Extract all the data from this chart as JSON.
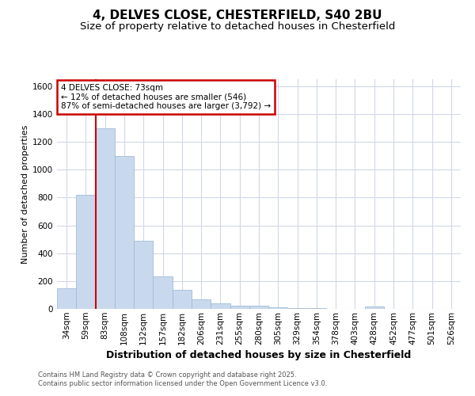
{
  "title1": "4, DELVES CLOSE, CHESTERFIELD, S40 2BU",
  "title2": "Size of property relative to detached houses in Chesterfield",
  "xlabel": "Distribution of detached houses by size in Chesterfield",
  "ylabel": "Number of detached properties",
  "categories": [
    "34sqm",
    "59sqm",
    "83sqm",
    "108sqm",
    "132sqm",
    "157sqm",
    "182sqm",
    "206sqm",
    "231sqm",
    "255sqm",
    "280sqm",
    "305sqm",
    "329sqm",
    "354sqm",
    "378sqm",
    "403sqm",
    "428sqm",
    "452sqm",
    "477sqm",
    "501sqm",
    "526sqm"
  ],
  "values": [
    150,
    820,
    1300,
    1100,
    490,
    235,
    135,
    70,
    40,
    25,
    20,
    10,
    5,
    3,
    2,
    2,
    15,
    1,
    1,
    1,
    1
  ],
  "bar_color": "#c9d9ed",
  "bar_edge_color": "#a0bcd8",
  "bar_width": 1.0,
  "red_line_x": 1.5,
  "annotation_title": "4 DELVES CLOSE: 73sqm",
  "annotation_line1": "← 12% of detached houses are smaller (546)",
  "annotation_line2": "87% of semi-detached houses are larger (3,792) →",
  "annotation_box_color": "#ffffff",
  "annotation_box_edge": "#cc0000",
  "red_line_color": "#cc0000",
  "ylim": [
    0,
    1650
  ],
  "yticks": [
    0,
    200,
    400,
    600,
    800,
    1000,
    1200,
    1400,
    1600
  ],
  "grid_color": "#d0d8e8",
  "footnote1": "Contains HM Land Registry data © Crown copyright and database right 2025.",
  "footnote2": "Contains public sector information licensed under the Open Government Licence v3.0.",
  "background_color": "#ffffff",
  "title1_fontsize": 11,
  "title2_fontsize": 9.5,
  "ylabel_fontsize": 8,
  "xlabel_fontsize": 9,
  "footnote_fontsize": 6,
  "tick_fontsize": 7.5
}
